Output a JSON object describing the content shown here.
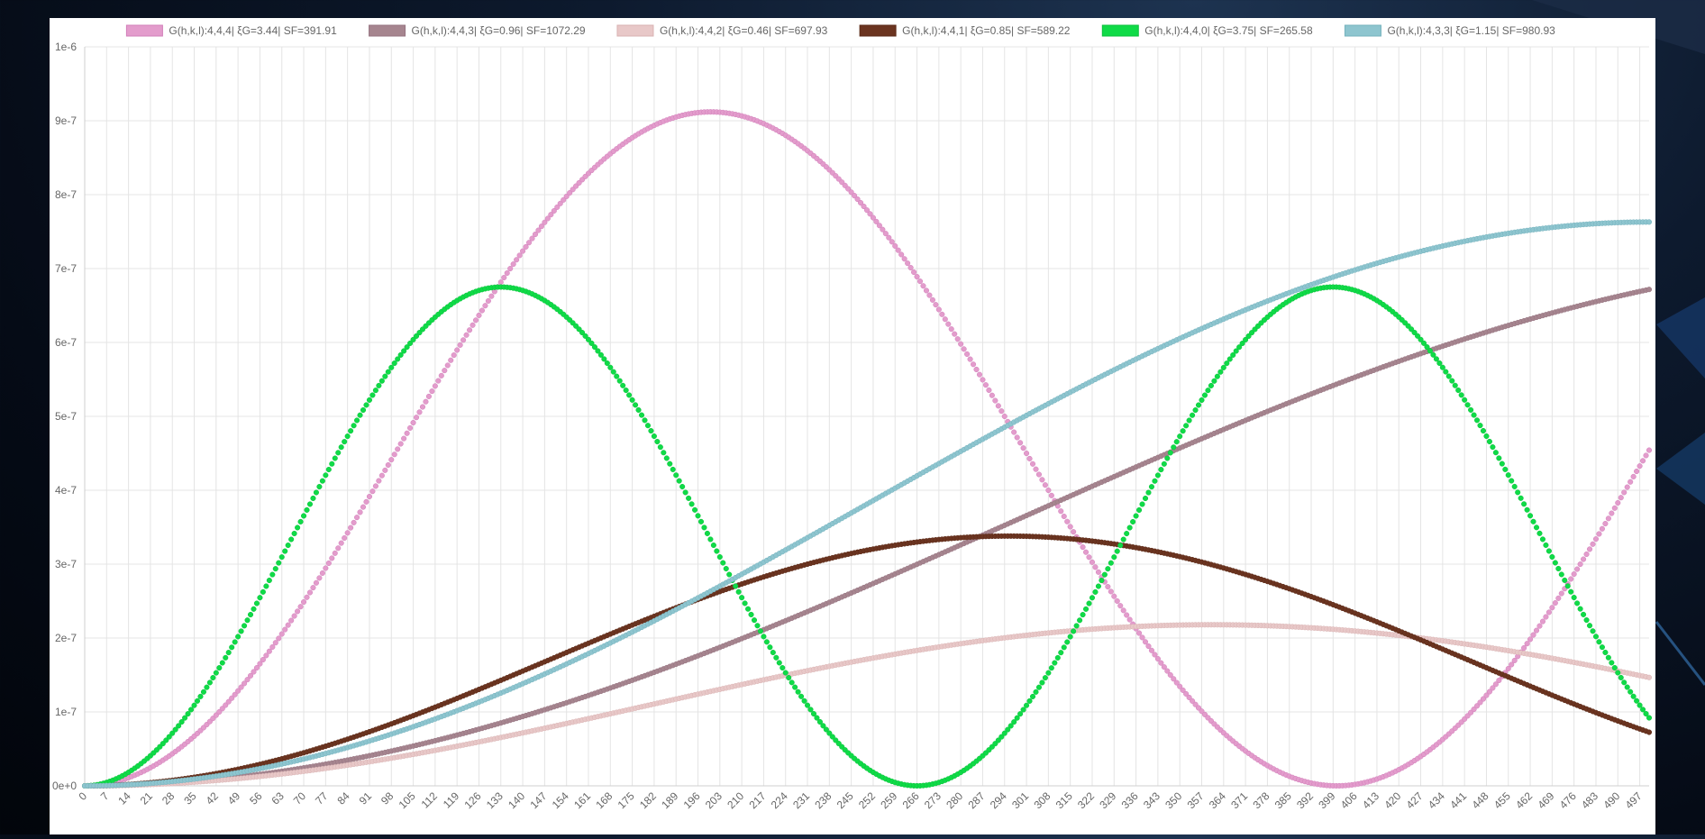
{
  "chart_data": {
    "type": "scatter",
    "title": "",
    "xlabel": "",
    "ylabel": "",
    "xlim": [
      0,
      500
    ],
    "ylim": [
      0,
      1e-06
    ],
    "y_ticks": [
      "0e+0",
      "1e-7",
      "2e-7",
      "3e-7",
      "4e-7",
      "5e-7",
      "6e-7",
      "7e-7",
      "8e-7",
      "9e-7",
      "1e-6"
    ],
    "x_tick_step": 7,
    "x_tick_max": 497,
    "grid": true,
    "legend_position": "top",
    "series": [
      {
        "name": "G(h,k,l):4,4,4| ξG=3.44| SF=391.91",
        "color": "#e39ccc",
        "stroke": "#d27fba",
        "formula": "amp*sin^2(k*x)",
        "amp": 9.12e-07,
        "k": 0.00785
      },
      {
        "name": "G(h,k,l):4,4,3| ξG=0.96| SF=1072.29",
        "color": "#a6858f",
        "stroke": "#957380",
        "formula": "amp*sin^2(k*x)",
        "amp": 7.14e-07,
        "k": 0.00265
      },
      {
        "name": "G(h,k,l):4,4,2| ξG=0.46| SF=697.93",
        "color": "#e8c8c8",
        "stroke": "#d9b2b2",
        "formula": "amp*sin^2(k*x)",
        "amp": 2.18e-07,
        "k": 0.00436
      },
      {
        "name": "G(h,k,l):4,4,1| ξG=0.85| SF=589.22",
        "color": "#6b3420",
        "stroke": "#5b2a18",
        "formula": "amp*sin^2(k*x)",
        "amp": 3.38e-07,
        "k": 0.00532
      },
      {
        "name": "G(h,k,l):4,4,0| ξG=3.75| SF=265.58",
        "color": "#0fdb47",
        "stroke": "#0cc03d",
        "formula": "amp*sin^2(k*x)",
        "amp": 6.75e-07,
        "k": 0.01181
      },
      {
        "name": "G(h,k,l):4,3,3| ξG=1.15| SF=980.93",
        "color": "#8ec5cf",
        "stroke": "#74b2bd",
        "formula": "amp*sin^2(k*x)",
        "amp": 7.63e-07,
        "k": 0.00314
      }
    ]
  }
}
